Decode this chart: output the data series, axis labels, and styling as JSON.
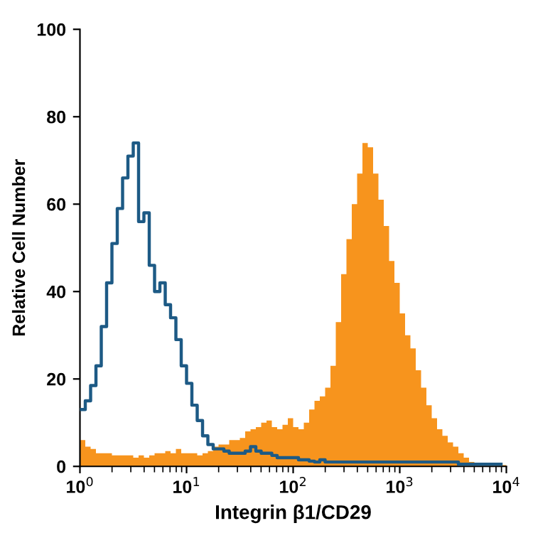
{
  "chart_data": {
    "type": "histogram",
    "xlabel": "Integrin β1/CD29",
    "ylabel": "Relative Cell Number",
    "log": "x",
    "grid": false,
    "xlim": [
      1,
      10000
    ],
    "xticks": [
      {
        "value": 1,
        "label": "10$^{0}$"
      },
      {
        "value": 10,
        "label": "10$^{1}$"
      },
      {
        "value": 100,
        "label": "10$^{2}$"
      },
      {
        "value": 1000,
        "label": "10$^{3}$"
      },
      {
        "value": 10000,
        "label": "10$^{4}$"
      }
    ],
    "ylim": [
      0,
      100
    ],
    "yticks": [
      0,
      20,
      40,
      60,
      80,
      100
    ],
    "bins": [
      1,
      1.122,
      1.259,
      1.413,
      1.585,
      1.778,
      1.995,
      2.239,
      2.512,
      2.818,
      3.162,
      3.548,
      3.981,
      4.467,
      5.012,
      5.623,
      6.31,
      7.079,
      7.943,
      8.913,
      10,
      11.22,
      12.59,
      14.13,
      15.85,
      17.78,
      19.95,
      22.39,
      25.12,
      28.18,
      31.62,
      35.48,
      39.81,
      44.67,
      50.12,
      56.23,
      63.1,
      70.79,
      79.43,
      89.13,
      100,
      112.2,
      125.9,
      141.3,
      158.5,
      177.8,
      199.5,
      223.9,
      251.2,
      281.8,
      316.2,
      354.8,
      398.1,
      446.7,
      501.2,
      562.3,
      631,
      707.9,
      794.3,
      891.3,
      1000,
      1122,
      1259,
      1413,
      1585,
      1778,
      1995,
      2239,
      2512,
      2818,
      3162,
      3548,
      3981,
      4467,
      5012,
      5623,
      6310,
      7079,
      7943,
      8913,
      10000
    ],
    "series": [
      {
        "color": "#f7941d",
        "values": [
          6,
          4.5,
          4,
          3,
          3,
          3,
          2.5,
          2.5,
          2.5,
          2.5,
          2,
          2.5,
          2,
          2.5,
          3,
          3,
          3.5,
          3,
          4,
          3,
          3,
          3,
          2.5,
          3,
          3.5,
          4.5,
          5,
          5,
          6,
          6,
          6.5,
          8,
          8.5,
          9,
          10,
          10.5,
          9,
          8.5,
          9.5,
          11,
          9,
          8.5,
          10,
          13,
          15,
          16,
          18,
          23,
          33,
          44,
          52,
          60,
          67,
          74,
          73,
          67,
          61,
          55,
          47,
          42,
          35,
          30,
          27,
          22,
          18,
          14,
          11,
          8.5,
          7,
          5.5,
          4.5,
          3,
          2,
          1,
          0.3,
          0.3,
          0.3,
          0.3,
          0.3,
          0.3
        ]
      },
      {
        "type": "step",
        "color": "#1d5a85",
        "x": [
          1,
          1.122,
          1.259,
          1.413,
          1.585,
          1.778,
          1.995,
          2.239,
          2.512,
          2.818,
          3.162,
          3.548,
          3.981,
          4.467,
          5.012,
          5.623,
          6.31,
          7.079,
          7.943,
          8.913,
          10,
          11.22,
          12.59,
          14.13,
          15.85,
          17.78,
          19.95,
          22.39,
          25.12,
          28.18,
          31.62,
          35.48,
          39.81,
          44.67,
          50.12,
          56.23,
          63.1,
          70.79,
          79.43,
          89.13,
          100,
          112.2,
          125.9,
          141.3,
          158.5,
          177.8,
          199.5,
          223.9,
          251.2,
          281.8,
          316.2,
          354.8,
          398.1,
          446.7,
          501.2,
          562.3,
          631,
          707.9,
          794.3,
          891.3,
          1000,
          1122,
          1259,
          1413,
          1585,
          1778,
          1995,
          2239,
          2512,
          2818,
          3162,
          3548,
          3981,
          4467,
          5012,
          5623,
          6310,
          7079,
          7943,
          8913
        ],
        "values": [
          13,
          15,
          18.5,
          23,
          32,
          42,
          51,
          59,
          66,
          71,
          74,
          56,
          58,
          46,
          40,
          42,
          37,
          34,
          29,
          23,
          19,
          14,
          10.5,
          7,
          5,
          4,
          4,
          3.5,
          3,
          3,
          3,
          3.5,
          4.5,
          3.5,
          3,
          3,
          2.5,
          2,
          2,
          2,
          2,
          1.5,
          1.5,
          1.2,
          1,
          1.5,
          1,
          1,
          1,
          1,
          1,
          1,
          1,
          1,
          1,
          1,
          1,
          1,
          1,
          1,
          1,
          1,
          1,
          1,
          1,
          1,
          1,
          1,
          1,
          1,
          1,
          0.5,
          0.5,
          0.5,
          0.5,
          0.5,
          0.5,
          0.5,
          0.5,
          0.5
        ]
      }
    ]
  }
}
